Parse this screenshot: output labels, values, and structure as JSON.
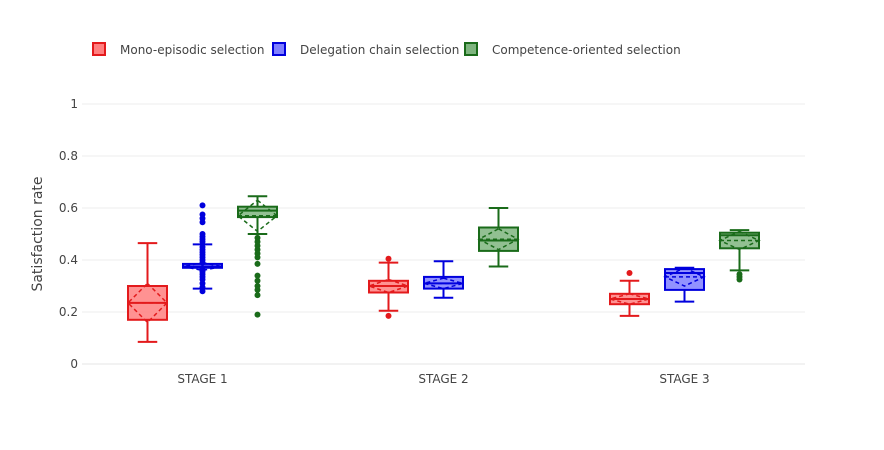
{
  "chart_data": {
    "type": "box",
    "ylabel": "Satisfaction rate",
    "ylim": [
      0,
      1
    ],
    "yticks": [
      0,
      0.2,
      0.4,
      0.6,
      0.8,
      1
    ],
    "ytick_labels": [
      "0",
      "0.2",
      "0.4",
      "0.6",
      "0.8",
      "1"
    ],
    "categories": [
      "STAGE 1",
      "STAGE 2",
      "STAGE 3"
    ],
    "legend_position": "top-left",
    "grid": true,
    "series": [
      {
        "name": "Mono-episodic selection",
        "color": "#e31a1c",
        "fill": "#ff7f7f",
        "boxes": [
          {
            "category": "STAGE 1",
            "min": 0.085,
            "q1": 0.17,
            "median": 0.235,
            "q3": 0.3,
            "max": 0.465,
            "mean": 0.235,
            "sd": 0.075,
            "outliers": []
          },
          {
            "category": "STAGE 2",
            "min": 0.205,
            "q1": 0.275,
            "median": 0.3,
            "q3": 0.32,
            "max": 0.39,
            "mean": 0.3,
            "sd": 0.025,
            "outliers": [
              0.185,
              0.405
            ]
          },
          {
            "category": "STAGE 3",
            "min": 0.185,
            "q1": 0.23,
            "median": 0.25,
            "q3": 0.27,
            "max": 0.32,
            "mean": 0.25,
            "sd": 0.02,
            "outliers": [
              0.35
            ]
          }
        ]
      },
      {
        "name": "Delegation chain selection",
        "color": "#0000dd",
        "fill": "#7f7fff",
        "boxes": [
          {
            "category": "STAGE 1",
            "min": 0.29,
            "q1": 0.37,
            "median": 0.375,
            "q3": 0.385,
            "max": 0.46,
            "mean": 0.375,
            "sd": 0.015,
            "outliers": [
              0.28,
              0.295,
              0.31,
              0.325,
              0.335,
              0.345,
              0.355,
              0.36,
              0.365,
              0.39,
              0.4,
              0.41,
              0.42,
              0.43,
              0.44,
              0.45,
              0.47,
              0.48,
              0.49,
              0.5,
              0.545,
              0.56,
              0.575,
              0.61
            ]
          },
          {
            "category": "STAGE 2",
            "min": 0.255,
            "q1": 0.29,
            "median": 0.31,
            "q3": 0.335,
            "max": 0.395,
            "mean": 0.31,
            "sd": 0.02,
            "outliers": []
          },
          {
            "category": "STAGE 3",
            "min": 0.24,
            "q1": 0.285,
            "median": 0.35,
            "q3": 0.365,
            "max": 0.37,
            "mean": 0.335,
            "sd": 0.035,
            "outliers": []
          }
        ]
      },
      {
        "name": "Competence-oriented selection",
        "color": "#1a6b1a",
        "fill": "#7fb57f",
        "boxes": [
          {
            "category": "STAGE 1",
            "min": 0.5,
            "q1": 0.565,
            "median": 0.59,
            "q3": 0.605,
            "max": 0.645,
            "mean": 0.57,
            "sd": 0.06,
            "outliers": [
              0.19,
              0.265,
              0.285,
              0.3,
              0.32,
              0.34,
              0.385,
              0.41,
              0.425,
              0.44,
              0.455,
              0.47,
              0.485
            ]
          },
          {
            "category": "STAGE 2",
            "min": 0.375,
            "q1": 0.435,
            "median": 0.475,
            "q3": 0.525,
            "max": 0.6,
            "mean": 0.48,
            "sd": 0.04,
            "outliers": []
          },
          {
            "category": "STAGE 3",
            "min": 0.36,
            "q1": 0.445,
            "median": 0.495,
            "q3": 0.505,
            "max": 0.515,
            "mean": 0.475,
            "sd": 0.035,
            "outliers": [
              0.325,
              0.335,
              0.345
            ]
          }
        ]
      }
    ]
  }
}
